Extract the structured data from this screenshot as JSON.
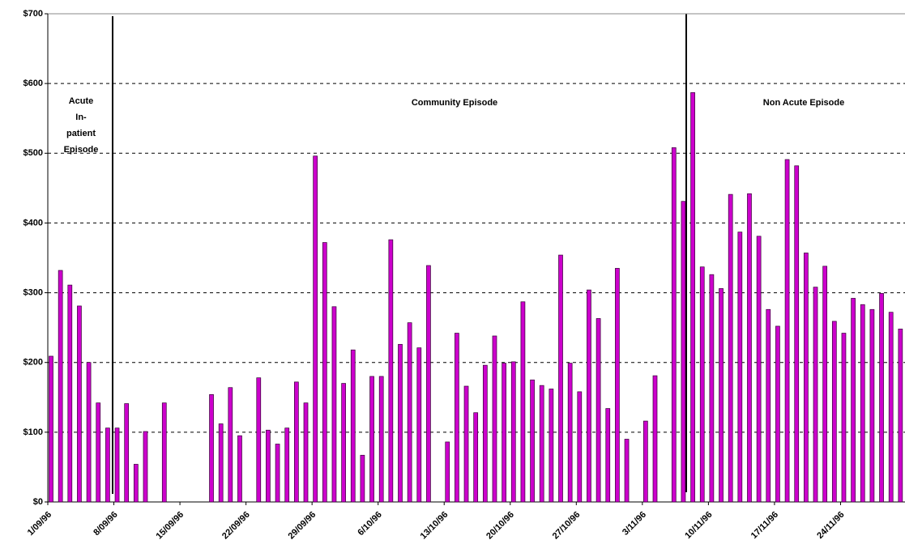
{
  "chart_data": {
    "type": "bar",
    "categories": [
      "1/09/96",
      null,
      null,
      null,
      null,
      null,
      null,
      "8/09/96",
      null,
      null,
      null,
      null,
      null,
      null,
      "15/09/96",
      null,
      null,
      null,
      null,
      null,
      null,
      "22/09/96",
      null,
      null,
      null,
      null,
      null,
      null,
      "29/09/96",
      null,
      null,
      null,
      null,
      null,
      null,
      "6/10/96",
      null,
      null,
      null,
      null,
      null,
      null,
      "13/10/96",
      null,
      null,
      null,
      null,
      null,
      null,
      "20/10/96",
      null,
      null,
      null,
      null,
      null,
      null,
      "27/10/96",
      null,
      null,
      null,
      null,
      null,
      null,
      "3/11/96",
      null,
      null,
      null,
      null,
      null,
      null,
      "10/11/96",
      null,
      null,
      null,
      null,
      null,
      null,
      "17/11/96",
      null,
      null,
      null,
      null,
      null,
      null,
      "24/11/96",
      null,
      null,
      null,
      null,
      null,
      null
    ],
    "values": [
      209,
      332,
      311,
      281,
      200,
      142,
      106,
      106,
      141,
      54,
      101,
      null,
      142,
      null,
      null,
      null,
      null,
      154,
      112,
      164,
      95,
      null,
      178,
      103,
      83,
      106,
      172,
      142,
      496,
      372,
      280,
      170,
      218,
      67,
      180,
      180,
      376,
      226,
      257,
      221,
      339,
      null,
      86,
      242,
      166,
      128,
      196,
      238,
      199,
      201,
      287,
      175,
      167,
      162,
      354,
      199,
      158,
      304,
      263,
      134,
      335,
      90,
      null,
      116,
      181,
      null,
      508,
      431,
      587,
      337,
      326,
      306,
      441,
      387,
      442,
      381,
      276,
      252,
      491,
      482,
      357,
      308,
      338,
      259,
      242,
      292,
      283,
      276,
      299,
      272,
      248
    ],
    "color": "#cc00cc",
    "ylim": [
      0,
      700
    ],
    "yticks": [
      {
        "value": 0,
        "label": "$0"
      },
      {
        "value": 100,
        "label": "$100"
      },
      {
        "value": 200,
        "label": "$200"
      },
      {
        "value": 300,
        "label": "$300"
      },
      {
        "value": 400,
        "label": "$400"
      },
      {
        "value": 500,
        "label": "$500"
      },
      {
        "value": 600,
        "label": "$600"
      },
      {
        "value": 700,
        "label": "$700"
      }
    ],
    "grid": true,
    "annotations": [
      [
        "Acute",
        "In-",
        "patient",
        "Episode"
      ],
      [
        "Community Episode"
      ],
      [
        "Non Acute Episode"
      ]
    ]
  }
}
